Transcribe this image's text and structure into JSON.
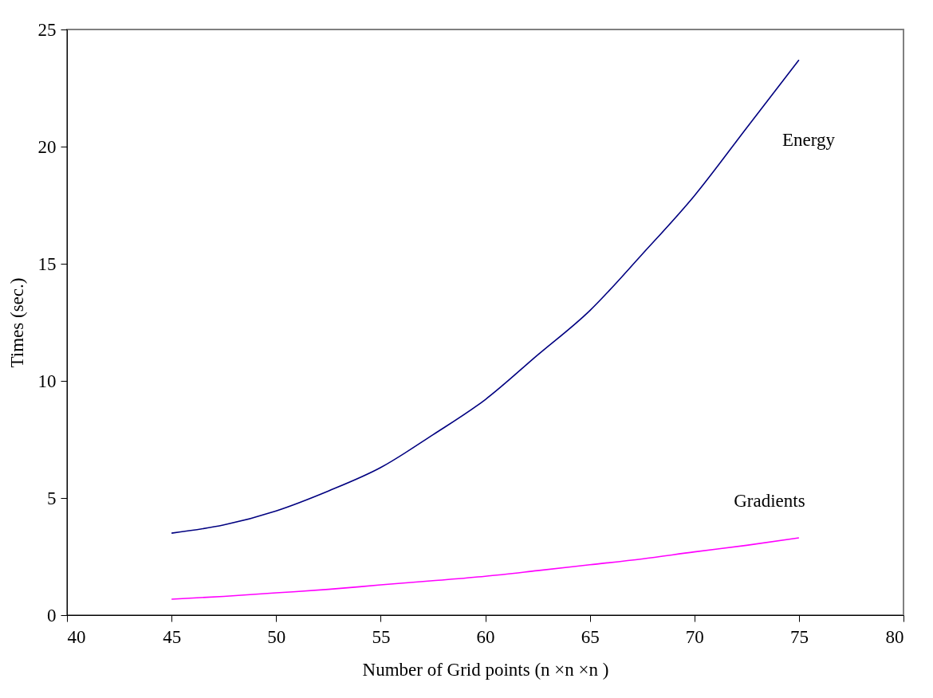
{
  "chart_data": {
    "type": "line",
    "xlabel": "Number of Grid points (n ×n ×n )",
    "ylabel": "Times (sec.)",
    "x": [
      45,
      47.5,
      50,
      52.5,
      55,
      57.5,
      60,
      62.5,
      65,
      67.5,
      70,
      72.5,
      75
    ],
    "series": [
      {
        "name": "Energy",
        "color": "#000080",
        "values": [
          3.5,
          3.85,
          4.45,
          5.3,
          6.3,
          7.7,
          9.2,
          11.1,
          13.0,
          15.4,
          17.9,
          20.8,
          23.7
        ]
      },
      {
        "name": "Gradients",
        "color": "#ff00ff",
        "values": [
          0.68,
          0.8,
          0.95,
          1.1,
          1.29,
          1.47,
          1.66,
          1.9,
          2.15,
          2.4,
          2.7,
          2.98,
          3.3
        ]
      }
    ],
    "xlim": [
      40,
      80
    ],
    "xticks": [
      40,
      45,
      50,
      55,
      60,
      65,
      70,
      75,
      80
    ],
    "ylim": [
      0,
      25
    ],
    "yticks": [
      0,
      5,
      10,
      15,
      20,
      25
    ],
    "grid": false,
    "marker": "none",
    "line_style": "solid"
  }
}
